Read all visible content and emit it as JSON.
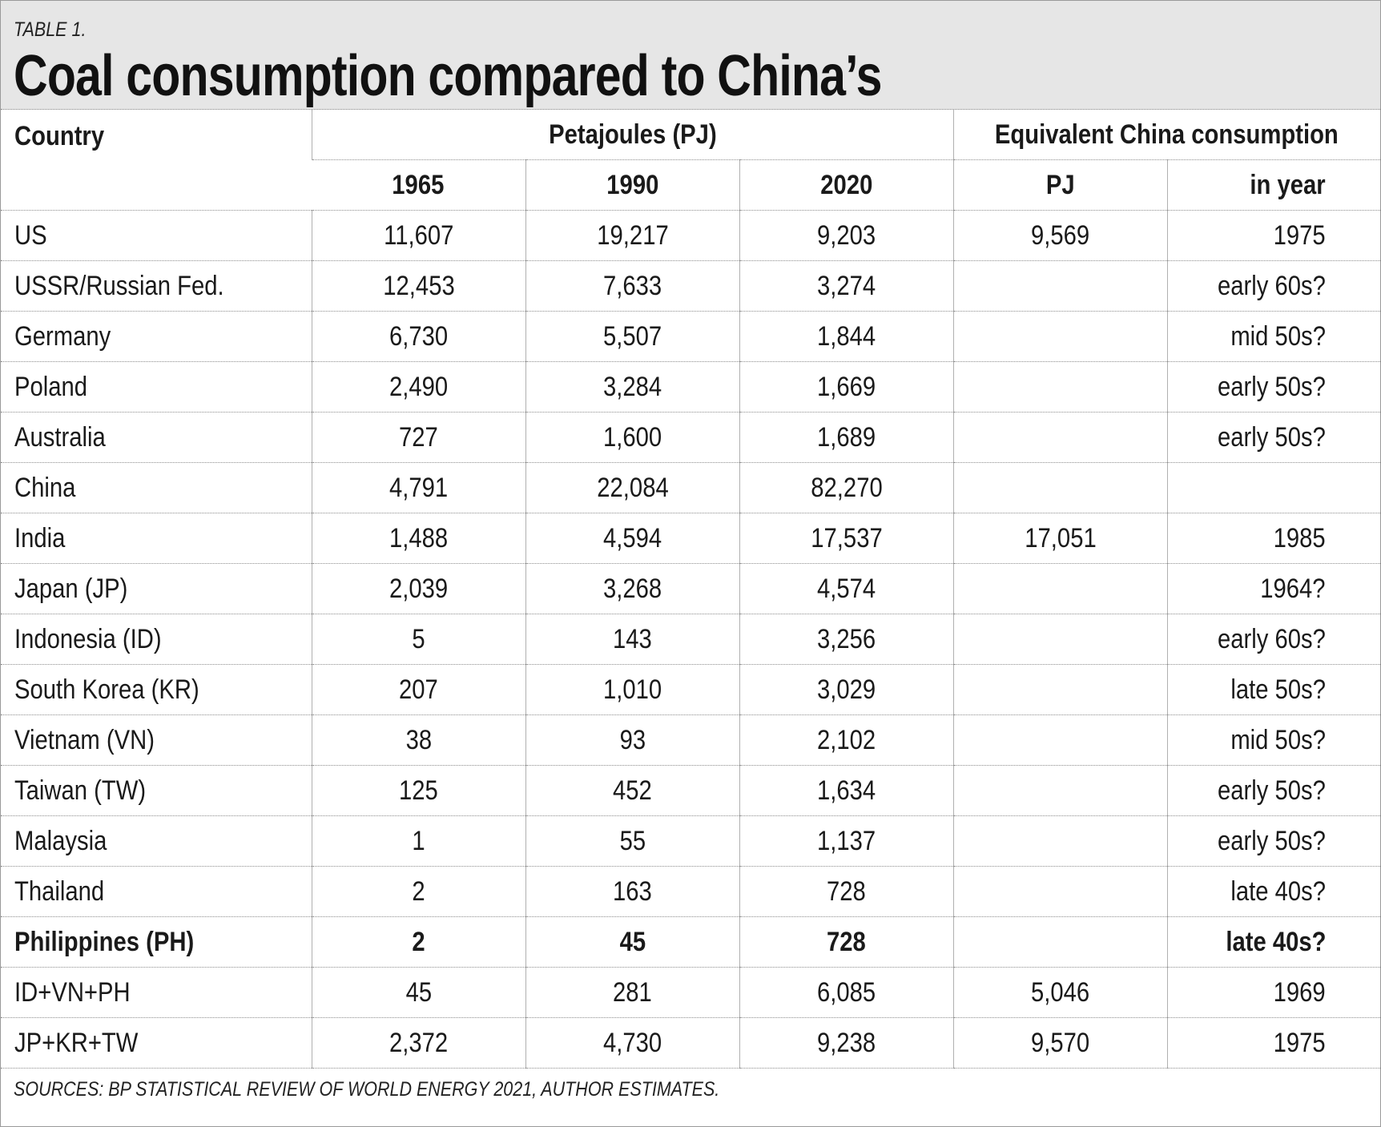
{
  "header": {
    "eyebrow": "TABLE 1.",
    "title": "Coal consumption compared to China’s"
  },
  "columns": {
    "country": "Country",
    "pj_group": "Petajoules (PJ)",
    "equiv_group": "Equivalent China consumption",
    "years": [
      "1965",
      "1990",
      "2020"
    ],
    "equiv_pj": "PJ",
    "equiv_year": "in year"
  },
  "rows": [
    {
      "country": "US",
      "v1965": "11,607",
      "v1990": "19,217",
      "v2020": "9,203",
      "equiv_pj": "9,569",
      "in_year": "1975"
    },
    {
      "country": "USSR/Russian Fed.",
      "v1965": "12,453",
      "v1990": "7,633",
      "v2020": "3,274",
      "equiv_pj": "",
      "in_year": "early 60s?"
    },
    {
      "country": "Germany",
      "v1965": "6,730",
      "v1990": "5,507",
      "v2020": "1,844",
      "equiv_pj": "",
      "in_year": "mid 50s?"
    },
    {
      "country": "Poland",
      "v1965": "2,490",
      "v1990": "3,284",
      "v2020": "1,669",
      "equiv_pj": "",
      "in_year": "early 50s?"
    },
    {
      "country": "Australia",
      "v1965": "727",
      "v1990": "1,600",
      "v2020": "1,689",
      "equiv_pj": "",
      "in_year": "early 50s?"
    },
    {
      "country": "China",
      "v1965": "4,791",
      "v1990": "22,084",
      "v2020": "82,270",
      "equiv_pj": "",
      "in_year": ""
    },
    {
      "country": "India",
      "v1965": "1,488",
      "v1990": "4,594",
      "v2020": "17,537",
      "equiv_pj": "17,051",
      "in_year": "1985"
    },
    {
      "country": "Japan (JP)",
      "v1965": "2,039",
      "v1990": "3,268",
      "v2020": "4,574",
      "equiv_pj": "",
      "in_year": "1964?"
    },
    {
      "country": "Indonesia (ID)",
      "v1965": "5",
      "v1990": "143",
      "v2020": "3,256",
      "equiv_pj": "",
      "in_year": "early 60s?"
    },
    {
      "country": "South Korea (KR)",
      "v1965": "207",
      "v1990": "1,010",
      "v2020": "3,029",
      "equiv_pj": "",
      "in_year": "late 50s?"
    },
    {
      "country": "Vietnam (VN)",
      "v1965": "38",
      "v1990": "93",
      "v2020": "2,102",
      "equiv_pj": "",
      "in_year": "mid 50s?"
    },
    {
      "country": "Taiwan (TW)",
      "v1965": "125",
      "v1990": "452",
      "v2020": "1,634",
      "equiv_pj": "",
      "in_year": "early 50s?"
    },
    {
      "country": "Malaysia",
      "v1965": "1",
      "v1990": "55",
      "v2020": "1,137",
      "equiv_pj": "",
      "in_year": "early 50s?"
    },
    {
      "country": "Thailand",
      "v1965": "2",
      "v1990": "163",
      "v2020": "728",
      "equiv_pj": "",
      "in_year": "late 40s?"
    },
    {
      "country": "Philippines (PH)",
      "v1965": "2",
      "v1990": "45",
      "v2020": "728",
      "equiv_pj": "",
      "in_year": "late 40s?",
      "bold": true
    },
    {
      "country": "ID+VN+PH",
      "v1965": "45",
      "v1990": "281",
      "v2020": "6,085",
      "equiv_pj": "5,046",
      "in_year": "1969"
    },
    {
      "country": "JP+KR+TW",
      "v1965": "2,372",
      "v1990": "4,730",
      "v2020": "9,238",
      "equiv_pj": "9,570",
      "in_year": "1975"
    }
  ],
  "footer": {
    "sources": "SOURCES: BP STATISTICAL REVIEW OF WORLD ENERGY 2021, AUTHOR ESTIMATES."
  }
}
